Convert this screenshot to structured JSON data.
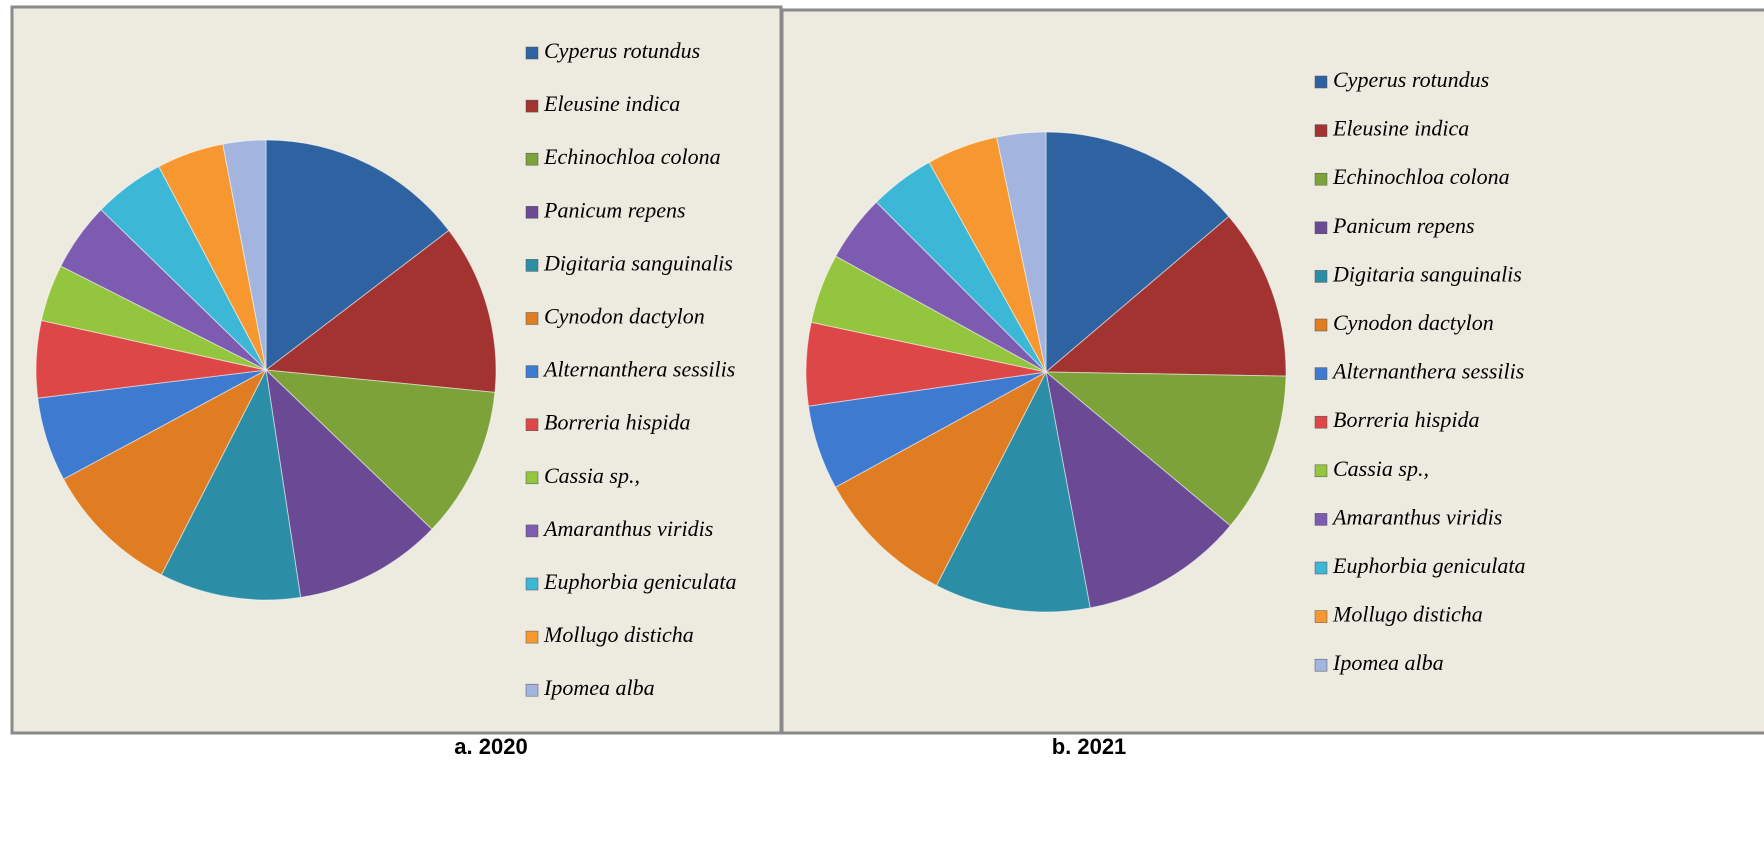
{
  "chart_data": [
    {
      "type": "pie",
      "title": "a. 2020",
      "categories": [
        "Cyperus rotundus",
        "Eleusine indica",
        "Echinochloa colona",
        "Panicum repens",
        "Digitaria sanguinalis",
        "Cynodon dactylon",
        "Alternanthera sessilis",
        "Borreria hispida",
        "Cassia sp.,",
        "Amaranthus viridis",
        "Euphorbia geniculata",
        "Mollugo disticha",
        "Ipomea alba"
      ],
      "values": [
        14.6,
        11.9,
        10.6,
        10.4,
        9.9,
        9.6,
        5.9,
        5.4,
        4.0,
        4.8,
        5.0,
        4.7,
        3.0
      ],
      "colors": [
        "#2e62a0",
        "#a33331",
        "#7da23a",
        "#6a4a94",
        "#2b8ea6",
        "#e07d22",
        "#3d7ad0",
        "#de4747",
        "#94c53f",
        "#7d5bb0",
        "#3cb7d6",
        "#f6982f",
        "#a3b5de"
      ]
    },
    {
      "type": "pie",
      "title": "b. 2021",
      "categories": [
        "Cyperus rotundus",
        "Eleusine indica",
        "Echinochloa colona",
        "Panicum repens",
        "Digitaria sanguinalis",
        "Cynodon dactylon",
        "Alternanthera sessilis",
        "Borreria hispida",
        "Cassia sp.,",
        "Amaranthus viridis",
        "Euphorbia geniculata",
        "Mollugo disticha",
        "Ipomea alba"
      ],
      "values": [
        13.8,
        11.5,
        10.8,
        11.0,
        10.5,
        9.5,
        5.7,
        5.6,
        4.7,
        4.5,
        4.4,
        4.8,
        3.3
      ],
      "colors": [
        "#2e62a0",
        "#a33331",
        "#7da23a",
        "#6a4a94",
        "#2b8ea6",
        "#e07d22",
        "#3d7ad0",
        "#de4747",
        "#94c53f",
        "#7d5bb0",
        "#3cb7d6",
        "#f6982f",
        "#a3b5de"
      ]
    }
  ]
}
